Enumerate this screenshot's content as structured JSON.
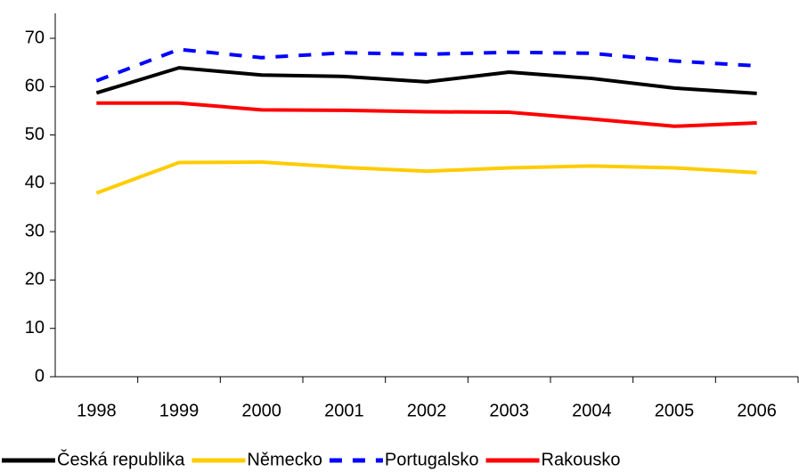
{
  "chart_data": {
    "type": "line",
    "categories": [
      "1998",
      "1999",
      "2000",
      "2001",
      "2002",
      "2003",
      "2004",
      "2005",
      "2006"
    ],
    "series": [
      {
        "name": "Česká republika",
        "color": "#000000",
        "dash": "solid",
        "values": [
          58.7,
          63.9,
          62.4,
          62.1,
          61.0,
          63.0,
          61.7,
          59.7,
          58.6
        ]
      },
      {
        "name": "Německo",
        "color": "#ffcc00",
        "dash": "solid",
        "values": [
          38.0,
          44.3,
          44.4,
          43.3,
          42.5,
          43.2,
          43.6,
          43.2,
          42.2
        ]
      },
      {
        "name": "Portugalsko",
        "color": "#0000ff",
        "dash": "dashed",
        "values": [
          61.2,
          67.7,
          66.0,
          67.0,
          66.7,
          67.1,
          66.9,
          65.3,
          64.3
        ]
      },
      {
        "name": "Rakousko",
        "color": "#ff0000",
        "dash": "solid",
        "values": [
          56.6,
          56.6,
          55.2,
          55.1,
          54.8,
          54.7,
          53.3,
          51.8,
          52.5
        ]
      }
    ],
    "ylim": [
      0,
      70
    ],
    "yticks": [
      0,
      10,
      20,
      30,
      40,
      50,
      60,
      70
    ],
    "grid": false,
    "legend": "bottom"
  }
}
